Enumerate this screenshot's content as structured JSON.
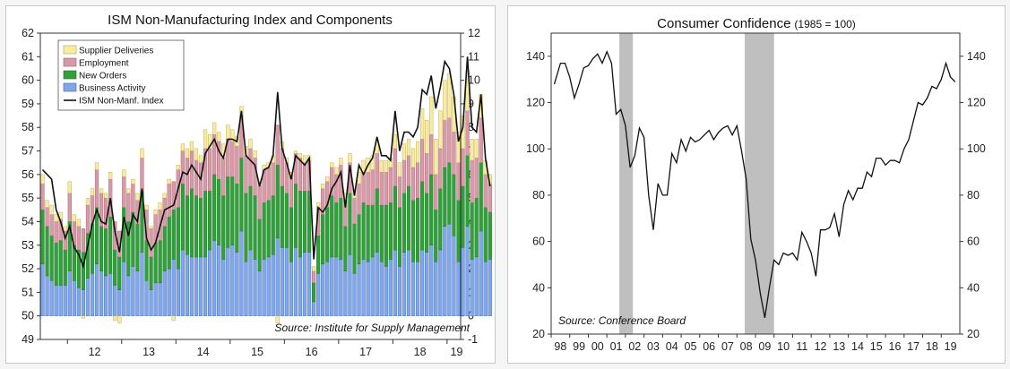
{
  "chart_data": [
    {
      "type": "bar",
      "stacked": true,
      "title": "ISM Non-Manufacturing Index and Components",
      "source": "Source: Institute for Supply Management",
      "left_axis": {
        "range": [
          49,
          62
        ],
        "ticks": [
          "49",
          "50",
          "51",
          "52",
          "53",
          "54",
          "55",
          "56",
          "57",
          "58",
          "59",
          "60",
          "61",
          "62"
        ]
      },
      "right_axis": {
        "range": [
          -1,
          12
        ],
        "ticks": [
          "-1",
          "0",
          "1",
          "2",
          "3",
          "4",
          "5",
          "6",
          "7",
          "8",
          "9",
          "10",
          "11",
          "12"
        ]
      },
      "x_range": [
        2011.5,
        2019.25
      ],
      "x_ticks": [
        "12",
        "13",
        "14",
        "15",
        "16",
        "17",
        "18",
        "19"
      ],
      "grid": false,
      "legend_position": "top-left",
      "series_meta": [
        {
          "name": "Supplier Deliveries",
          "color": "#f8eca0",
          "edge": "#b3a24a"
        },
        {
          "name": "Employment",
          "color": "#d79aa6",
          "edge": "#a05a68"
        },
        {
          "name": "New Orders",
          "color": "#2fa03a",
          "edge": "#1f6f26"
        },
        {
          "name": "Business Activity",
          "color": "#7fa7ea",
          "edge": "#3d63b0"
        },
        {
          "name": "ISM Non-Manf. Index",
          "color": "#111111",
          "line": true
        }
      ],
      "months_start": "2011-07",
      "bar_gap": 0.25,
      "components": {
        "business_activity": [
          2.2,
          1.7,
          1.5,
          1.3,
          1.3,
          1.3,
          1.9,
          1.5,
          1.2,
          1.1,
          1.6,
          1.8,
          2.2,
          1.9,
          1.7,
          1.8,
          1.3,
          1.1,
          2.3,
          1.7,
          2.1,
          1.9,
          2.7,
          1.5,
          1.1,
          1.4,
          1.4,
          1.9,
          2.0,
          2.4,
          2.0,
          2.8,
          2.6,
          2.5,
          2.5,
          2.5,
          2.5,
          2.8,
          3.2,
          3.0,
          2.4,
          2.9,
          3.0,
          2.7,
          3.6,
          2.3,
          2.8,
          2.4,
          1.9,
          2.4,
          2.5,
          2.6,
          3.3,
          2.9,
          2.9,
          2.3,
          2.9,
          2.5,
          2.7,
          2.7,
          0.6,
          1.8,
          2.2,
          2.3,
          2.5,
          2.5,
          2.4,
          1.9,
          2.6,
          1.8,
          2.2,
          2.4,
          2.3,
          2.5,
          2.7,
          2.3,
          2.1,
          2.4,
          2.8,
          2.1,
          2.7,
          2.8,
          2.3,
          2.3,
          2.8,
          2.7,
          3.0,
          2.3,
          2.8,
          3.8,
          3.9,
          3.4,
          2.3,
          2.9,
          3.8,
          2.4,
          2.5,
          3.6,
          2.3,
          2.4
        ],
        "new_orders": [
          2.3,
          2.1,
          1.9,
          1.8,
          1.9,
          1.5,
          2.1,
          1.5,
          1.6,
          1.6,
          1.9,
          2.1,
          2.4,
          1.9,
          2.0,
          2.4,
          1.5,
          1.4,
          2.3,
          2.3,
          2.3,
          2.0,
          2.6,
          1.7,
          1.4,
          1.7,
          1.8,
          1.9,
          2.2,
          2.1,
          2.6,
          2.8,
          2.5,
          2.9,
          2.6,
          2.5,
          2.8,
          2.5,
          2.8,
          2.8,
          2.7,
          3.0,
          2.9,
          2.9,
          3.1,
          2.9,
          2.7,
          2.7,
          2.2,
          2.4,
          2.4,
          2.5,
          3.1,
          2.6,
          2.3,
          2.3,
          2.7,
          2.8,
          2.6,
          2.6,
          0.8,
          1.6,
          2.1,
          2.3,
          2.6,
          2.3,
          2.6,
          1.9,
          2.6,
          2.1,
          2.1,
          2.4,
          2.4,
          2.2,
          2.7,
          2.4,
          2.6,
          2.4,
          2.7,
          2.5,
          2.5,
          2.7,
          2.6,
          2.7,
          2.9,
          2.5,
          3.0,
          2.2,
          2.6,
          2.5,
          2.6,
          2.6,
          2.6,
          2.6,
          3.0,
          2.4,
          2.5,
          2.9,
          2.3,
          2.0
        ],
        "employment": [
          1.1,
          0.8,
          0.9,
          0.9,
          0.9,
          0.8,
          1.2,
          1.0,
          1.0,
          1.0,
          1.2,
          1.2,
          1.6,
          1.4,
          1.3,
          1.6,
          1.2,
          1.1,
          1.3,
          1.2,
          1.2,
          1.0,
          1.4,
          1.3,
          1.2,
          1.2,
          1.3,
          1.2,
          1.4,
          1.2,
          1.6,
          1.4,
          1.6,
          1.6,
          1.5,
          1.5,
          1.8,
          1.8,
          1.7,
          1.6,
          1.6,
          1.6,
          1.5,
          1.6,
          1.8,
          1.6,
          1.6,
          1.6,
          1.4,
          1.4,
          1.4,
          1.4,
          1.7,
          1.6,
          1.3,
          1.3,
          1.3,
          1.4,
          1.2,
          1.3,
          0.5,
          1.2,
          1.1,
          1.1,
          1.2,
          1.2,
          1.4,
          1.1,
          1.3,
          1.1,
          1.3,
          1.3,
          1.4,
          1.5,
          1.5,
          1.4,
          1.4,
          1.5,
          1.6,
          1.3,
          1.4,
          1.3,
          1.4,
          1.5,
          1.8,
          1.7,
          1.7,
          1.5,
          1.7,
          2.0,
          1.9,
          1.8,
          1.6,
          1.6,
          1.9,
          1.8,
          1.7,
          1.9,
          1.4,
          1.2
        ],
        "supplier_deliveries": [
          0.4,
          0.3,
          0.4,
          0.3,
          0.3,
          0.2,
          0.5,
          0.3,
          0.3,
          -0.1,
          0.3,
          0.3,
          0.3,
          0.2,
          0.2,
          0.3,
          -0.2,
          -0.3,
          0.3,
          0.2,
          0.2,
          0.3,
          0.4,
          0.2,
          0.1,
          0.2,
          0.3,
          0.2,
          0.2,
          -0.2,
          0.2,
          0.3,
          0.4,
          0.4,
          0.5,
          0.3,
          0.8,
          0.6,
          0.5,
          0.4,
          0.6,
          0.6,
          0.5,
          0.4,
          0.4,
          0.4,
          0.4,
          0.3,
          0.2,
          0.2,
          0.2,
          0.3,
          -0.3,
          0.3,
          0.2,
          0.2,
          0.1,
          0.2,
          0.3,
          0.2,
          0.2,
          0.2,
          0.2,
          0.2,
          0.2,
          0.3,
          0.3,
          0.3,
          0.4,
          0.4,
          0.5,
          0.5,
          0.6,
          0.6,
          0.5,
          0.5,
          0.5,
          0.4,
          0.6,
          0.6,
          0.7,
          0.7,
          0.8,
          0.9,
          1.3,
          1.4,
          1.6,
          1.5,
          1.6,
          1.7,
          1.9,
          1.5,
          1.3,
          1.4,
          1.7,
          0.9,
          0.8,
          1.0,
          0.6,
          0.4
        ]
      },
      "index": [
        56.2,
        56.0,
        55.8,
        54.5,
        54.0,
        53.3,
        53.8,
        52.9,
        52.6,
        52.1,
        53.0,
        53.9,
        54.5,
        54.0,
        53.9,
        55.0,
        53.6,
        52.7,
        54.2,
        53.4,
        54.3,
        54.0,
        55.4,
        53.3,
        52.8,
        53.1,
        53.8,
        54.5,
        54.6,
        54.7,
        55.4,
        56.1,
        56.0,
        56.4,
        56.1,
        55.8,
        56.9,
        57.2,
        57.5,
        57.0,
        56.7,
        57.5,
        57.5,
        57.4,
        58.7,
        56.8,
        56.6,
        56.4,
        55.5,
        56.2,
        56.3,
        56.8,
        59.5,
        57.1,
        56.5,
        55.8,
        56.8,
        56.6,
        56.4,
        56.7,
        52.4,
        54.6,
        54.4,
        54.7,
        55.4,
        55.7,
        56.1,
        54.6,
        56.4,
        55.1,
        56.4,
        56.0,
        56.4,
        56.7,
        57.6,
        56.8,
        56.8,
        56.6,
        58.7,
        57.0,
        57.8,
        57.8,
        57.6,
        58.0,
        59.6,
        59.4,
        60.2,
        58.8,
        59.7,
        60.8,
        60.5,
        59.4,
        57.4,
        58.0,
        61.0,
        58.0,
        57.8,
        59.4,
        56.7,
        55.5
      ]
    },
    {
      "type": "line",
      "title": "Consumer Confidence",
      "title_suffix": "(1985 = 100)",
      "source": "Source: Conference Board",
      "y_axis": {
        "range": [
          20,
          150
        ],
        "ticks": [
          "20",
          "40",
          "60",
          "80",
          "100",
          "120",
          "140"
        ]
      },
      "x_range": [
        1997.5,
        2019.5
      ],
      "x_ticks": [
        "98",
        "99",
        "00",
        "01",
        "02",
        "03",
        "04",
        "05",
        "06",
        "07",
        "08",
        "09",
        "10",
        "11",
        "12",
        "13",
        "14",
        "15",
        "16",
        "17",
        "18",
        "19"
      ],
      "grid": false,
      "recessions": [
        [
          2001.17,
          2001.9
        ],
        [
          2007.92,
          2009.5
        ]
      ],
      "color": "#111111",
      "x": [
        1997.67,
        1998.0,
        1998.25,
        1998.5,
        1998.75,
        1999.0,
        1999.25,
        1999.5,
        1999.75,
        2000.0,
        2000.25,
        2000.5,
        2000.75,
        2001.0,
        2001.25,
        2001.5,
        2001.75,
        2002.0,
        2002.25,
        2002.5,
        2002.75,
        2003.0,
        2003.25,
        2003.5,
        2003.75,
        2004.0,
        2004.25,
        2004.5,
        2004.75,
        2005.0,
        2005.25,
        2005.5,
        2005.75,
        2006.0,
        2006.25,
        2006.5,
        2006.75,
        2007.0,
        2007.25,
        2007.5,
        2007.75,
        2008.0,
        2008.25,
        2008.5,
        2008.75,
        2009.0,
        2009.25,
        2009.5,
        2009.75,
        2010.0,
        2010.25,
        2010.5,
        2010.75,
        2011.0,
        2011.25,
        2011.5,
        2011.75,
        2012.0,
        2012.25,
        2012.5,
        2012.75,
        2013.0,
        2013.25,
        2013.5,
        2013.75,
        2014.0,
        2014.25,
        2014.5,
        2014.75,
        2015.0,
        2015.25,
        2015.5,
        2015.75,
        2016.0,
        2016.25,
        2016.5,
        2016.75,
        2017.0,
        2017.25,
        2017.5,
        2017.75,
        2018.0,
        2018.25,
        2018.5,
        2018.75,
        2019.0,
        2019.25
      ],
      "y": [
        128,
        137,
        137,
        131,
        122,
        128,
        135,
        136,
        139,
        141,
        137,
        142,
        137,
        115,
        117,
        110,
        92,
        97,
        109,
        105,
        80,
        65,
        85,
        80,
        80,
        98,
        94,
        104,
        99,
        105,
        103,
        104,
        106,
        108,
        104,
        107,
        109,
        110,
        106,
        110,
        99,
        87,
        61,
        52,
        38,
        27,
        40,
        52,
        50,
        55,
        54,
        55,
        52,
        64,
        60,
        55,
        45,
        65,
        65,
        66,
        72,
        62,
        76,
        82,
        78,
        83,
        83,
        90,
        88,
        96,
        96,
        93,
        95,
        95,
        94,
        100,
        104,
        112,
        120,
        119,
        122,
        127,
        126,
        130,
        137,
        131,
        129
      ]
    }
  ]
}
